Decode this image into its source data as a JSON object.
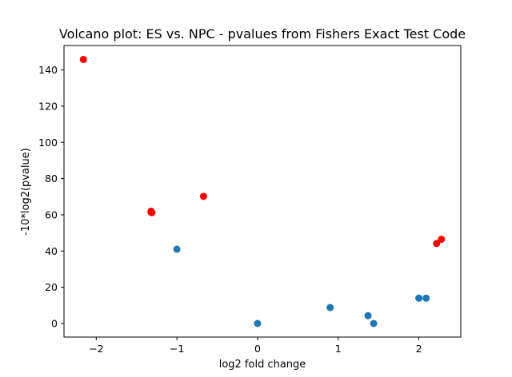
{
  "chart_data": {
    "type": "scatter",
    "title": "Volcano plot: ES vs. NPC - pvalues from Fishers Exact Test Code",
    "xlabel": "log2 fold change",
    "ylabel": "-10*log2(pvalue)",
    "xlim": [
      -2.4,
      2.52
    ],
    "ylim": [
      -7.5,
      153.5
    ],
    "xticks": [
      -2,
      -1,
      0,
      1,
      2
    ],
    "yticks": [
      0,
      20,
      40,
      60,
      80,
      100,
      120,
      140
    ],
    "grid": false,
    "legend": "none",
    "colors": {
      "not_significant": "#1f77b4",
      "significant": "#ff0000"
    },
    "series": [
      {
        "color": "#1f77b4",
        "points": [
          {
            "x": -1.0,
            "y": 41.0
          },
          {
            "x": 0.0,
            "y": 0.0
          },
          {
            "x": 0.9,
            "y": 8.8
          },
          {
            "x": 1.37,
            "y": 4.3
          },
          {
            "x": 1.44,
            "y": 0.0
          },
          {
            "x": 2.0,
            "y": 14.0
          },
          {
            "x": 2.09,
            "y": 14.0
          }
        ]
      },
      {
        "color": "#ff0000",
        "points": [
          {
            "x": -2.16,
            "y": 145.8
          },
          {
            "x": -1.32,
            "y": 61.5
          },
          {
            "x": -1.32,
            "y": 62.0
          },
          {
            "x": -1.31,
            "y": 61.2
          },
          {
            "x": -0.67,
            "y": 70.2
          },
          {
            "x": 2.22,
            "y": 44.2
          },
          {
            "x": 2.28,
            "y": 46.5
          }
        ]
      }
    ]
  }
}
